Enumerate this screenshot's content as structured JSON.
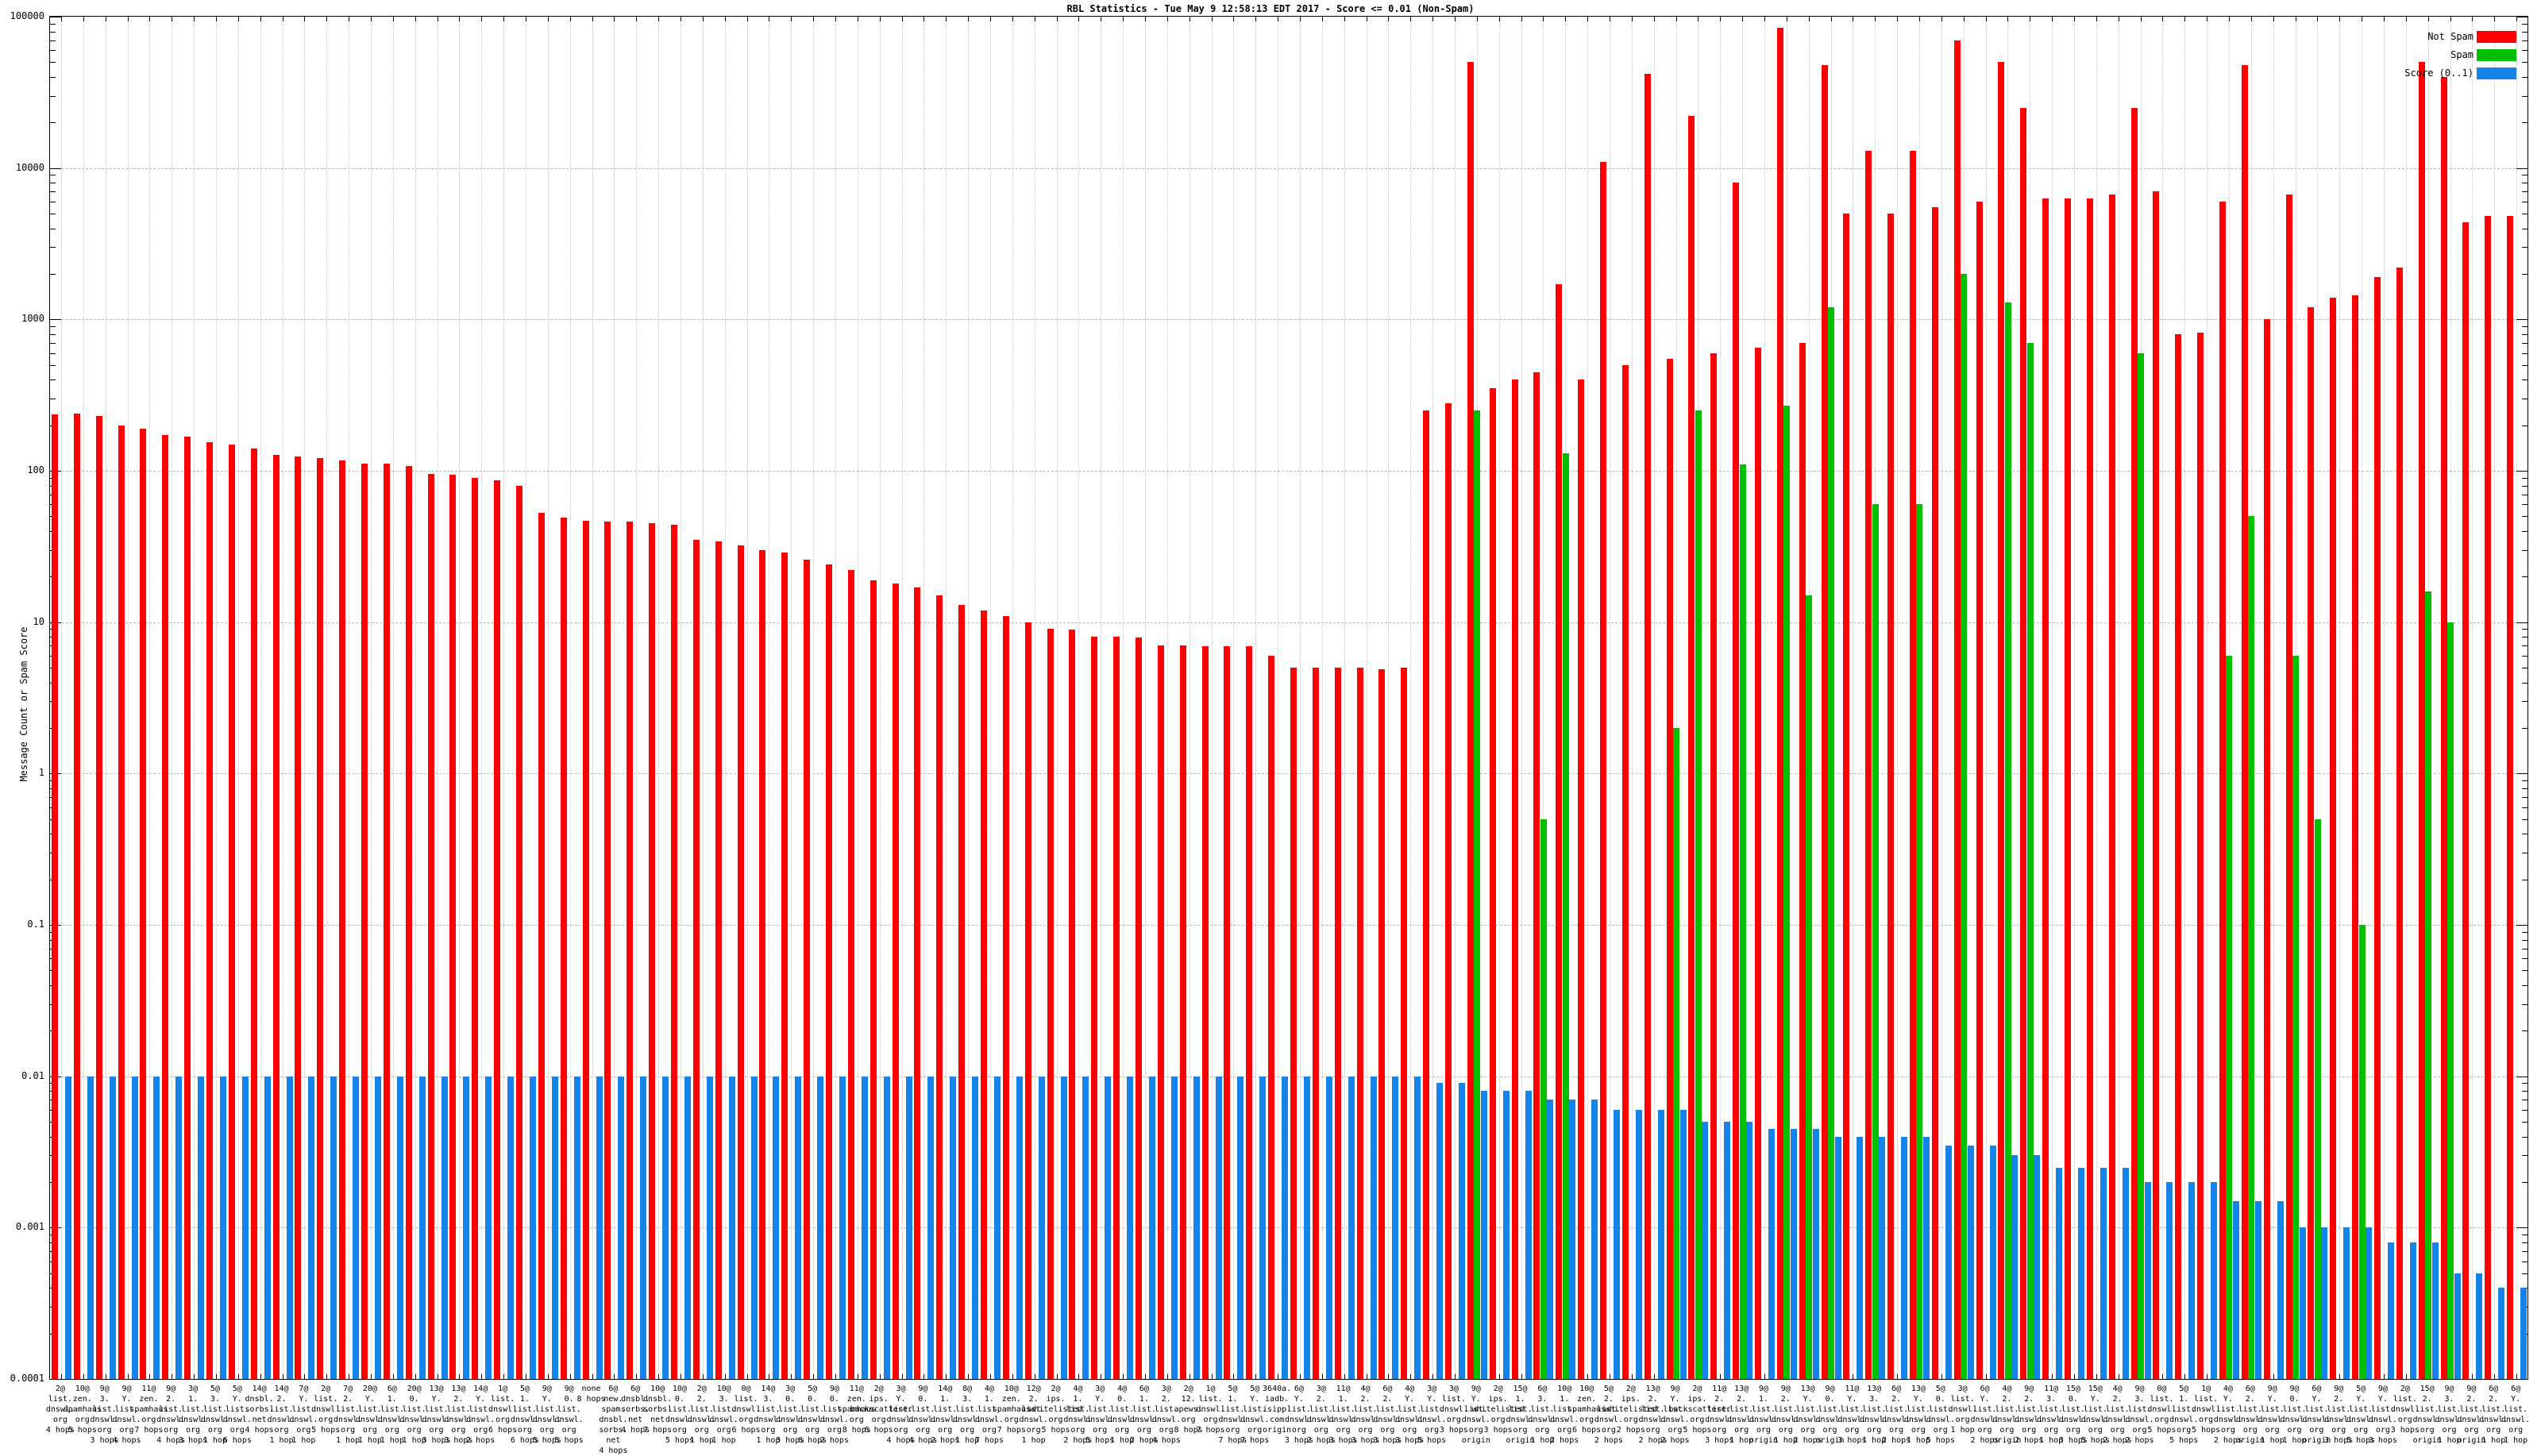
{
  "chart_data": {
    "type": "bar",
    "title": "RBL Statistics - Tue May  9 12:58:13 EDT 2017 - Score <= 0.01 (Non-Spam)",
    "ylabel": "Message Count or Spam Score",
    "xlabel": "",
    "log_y": true,
    "ylim": [
      0.0001,
      100000
    ],
    "grid": true,
    "legend_position": "top-right",
    "y_ticks": [
      "100000",
      "10000",
      "1000",
      "100",
      "10",
      "1",
      "0.1",
      "0.01",
      "0.001",
      "0.0001"
    ],
    "series": [
      {
        "name": "Not Spam",
        "color": "#ff0000"
      },
      {
        "name": "Spam",
        "color": "#00c000"
      },
      {
        "name": "Score (0..1)",
        "color": "#1583e8"
      }
    ],
    "groups": [
      [
        "2@|list.|dnswl.|org|4 hops",
        235,
        null,
        0.01
      ],
      [
        "10@|zen.|spamhaus|org|5 hops",
        240,
        null,
        0.01
      ],
      [
        "9@|3.|list.|dnswl.|org|3 hops",
        230,
        null,
        0.01
      ],
      [
        "9@|Y.|list.|dnswl.|org|4 hops",
        200,
        null,
        0.01
      ],
      [
        "11@|zen.|spamhaus|org|7 hops",
        190,
        null,
        0.01
      ],
      [
        "9@|2.|list.|dnswl.|org|4 hops",
        172,
        null,
        0.01
      ],
      [
        "3@|1.|list.|dnswl.|org|3 hops",
        168,
        null,
        0.01
      ],
      [
        "5@|3.|list.|dnswl.|org|1 hop",
        155,
        null,
        0.01
      ],
      [
        "5@|Y.|list.|dnswl.|org|6 hops",
        149,
        null,
        0.01
      ],
      [
        "14@|dnsbl.|sorbs.|net|4 hops",
        140,
        null,
        0.01
      ],
      [
        "14@|2.|list.|dnswl.|org|1 hop",
        128,
        null,
        0.01
      ],
      [
        "7@|Y.|list.|dnswl.|org|1 hop",
        124,
        null,
        0.01
      ],
      [
        "2@|list.|dnswl.|org|5 hops",
        121,
        null,
        0.01
      ],
      [
        "7@|2.|list.|dnswl.|org|1 hop",
        117,
        null,
        0.01
      ],
      [
        "20@|Y.|list.|dnswl.|org|1 hop",
        112,
        null,
        0.01
      ],
      [
        "6@|1.|list.|dnswl.|org|1 hop",
        111,
        null,
        0.01
      ],
      [
        "20@|0.|list.|dnswl.|org|1 hop",
        108,
        null,
        0.01
      ],
      [
        "13@|Y.|list.|dnswl.|org|3 hops",
        95,
        null,
        0.01
      ],
      [
        "13@|2.|list.|dnswl.|org|3 hops",
        94,
        null,
        0.01
      ],
      [
        "14@|Y.|list.|dnswl.|org|2 hops",
        90,
        null,
        0.01
      ],
      [
        "1@|list.|dnswl.|org|6 hops",
        87,
        null,
        0.01
      ],
      [
        "5@|1.|list.|dnswl.|org|6 hops",
        80,
        null,
        0.01
      ],
      [
        "9@|Y.|list.|dnswl.|org|5 hops",
        53,
        null,
        0.01
      ],
      [
        "9@|0.|list.|dnswl.|org|5 hops",
        49,
        null,
        0.01
      ],
      [
        "none|8 hops",
        47,
        null,
        0.01
      ],
      [
        "6@|new.|spam.|dnsbl.|sorbs.|net|4 hops",
        46,
        null,
        0.01
      ],
      [
        "6@|dnsbl.|sorbs.|net|4 hops",
        46,
        null,
        0.01
      ],
      [
        "10@|dnsbl.|sorbs.|net|7 hops",
        45,
        null,
        0.01
      ],
      [
        "10@|0.|list.|dnswl.|org|5 hops",
        44,
        null,
        0.01
      ],
      [
        "2@|2.|list.|dnswl.|org|1 hop",
        35,
        null,
        0.01
      ],
      [
        "10@|3.|list.|dnswl.|org|1 hop",
        34,
        null,
        0.01
      ],
      [
        "0@|list.|dnswl.|org|6 hops",
        32,
        null,
        0.01
      ],
      [
        "14@|3.|list.|dnswl.|org|1 hop",
        30,
        null,
        0.01
      ],
      [
        "3@|0.|list.|dnswl.|org|3 hops",
        29,
        null,
        0.01
      ],
      [
        "5@|0.|list.|dnswl.|org|6 hops",
        26,
        null,
        0.01
      ],
      [
        "9@|0.|list.|dnswl.|org|2 hops",
        24,
        null,
        0.01
      ],
      [
        "11@|zen.|spamhaus|org|8 hops",
        22,
        null,
        0.01
      ],
      [
        "2@|ips.|backscatterer|org|6 hops",
        19,
        null,
        0.01
      ],
      [
        "3@|Y.|list.|dnswl.|org|4 hops",
        18,
        null,
        0.01
      ],
      [
        "9@|0.|list.|dnswl.|org|4 hops",
        17,
        null,
        0.01
      ],
      [
        "14@|1.|list.|dnswl.|org|2 hops",
        15,
        null,
        0.01
      ],
      [
        "8@|3.|list.|dnswl.|org|1 hop",
        13,
        null,
        0.01
      ],
      [
        "4@|1.|list.|dnswl.|org|7 hops",
        12,
        null,
        0.01
      ],
      [
        "10@|zen.|spamhaus|org|7 hops",
        11,
        null,
        0.01
      ],
      [
        "12@|2.|list.|dnswl.|org|1 hop",
        10,
        null,
        0.01
      ],
      [
        "2@|ips.|whitelisted|org|5 hops",
        9,
        null,
        0.01
      ],
      [
        "4@|1.|list.|dnswl.|org|2 hops",
        8.9,
        null,
        0.01
      ],
      [
        "3@|Y.|list.|dnswl.|org|5 hops",
        8,
        null,
        0.01
      ],
      [
        "4@|0.|list.|dnswl.|org|1 hop",
        8,
        null,
        0.01
      ],
      [
        "6@|1.|list.|dnswl.|org|2 hops",
        7.9,
        null,
        0.01
      ],
      [
        "3@|2.|list.|dnswl.|org|4 hops",
        7,
        null,
        0.01
      ],
      [
        "2@|12.|apews.|org|8 hops",
        7,
        null,
        0.01
      ],
      [
        "1@|list.|dnswl.|org|7 hops",
        6.9,
        null,
        0.01
      ],
      [
        "5@|1.|list.|dnswl.|org|7 hops",
        6.9,
        null,
        0.01
      ],
      [
        "5@|Y.|list.|dnswl.|org|7 hops",
        6.9,
        null,
        0.01
      ],
      [
        "3640a.|iadb.|isipp.|com|origin",
        6,
        null,
        0.01
      ],
      [
        "6@|Y.|list.|dnswl.|org|3 hops",
        5,
        null,
        0.01
      ],
      [
        "3@|2.|list.|dnswl.|org|2 hops",
        5,
        null,
        0.01
      ],
      [
        "11@|1.|list.|dnswl.|org|3 hops",
        5,
        null,
        0.01
      ],
      [
        "4@|2.|list.|dnswl.|org|3 hops",
        5,
        null,
        0.01
      ],
      [
        "6@|2.|list.|dnswl.|org|3 hops",
        4.9,
        null,
        0.01
      ],
      [
        "4@|Y.|list.|dnswl.|org|3 hops",
        5,
        null,
        0.01
      ],
      [
        "3@|Y.|list.|dnswl.|org|5 hops",
        250,
        null,
        0.009
      ],
      [
        "3@|list.|dnswl.|org|3 hops",
        280,
        null,
        0.009
      ],
      [
        "9@|Y.|list.|dnswl.|org|origin",
        50000,
        250,
        0.008
      ],
      [
        "2@|ips.|whitelisted|org|3 hops",
        350,
        null,
        0.008
      ],
      [
        "15@|1.|list.|dnswl.|org|origin",
        400,
        null,
        0.008
      ],
      [
        "6@|3.|list.|dnswl.|org|1 hop",
        450,
        0.5,
        0.007
      ],
      [
        "10@|1.|list.|dnswl.|org|2 hops",
        1700,
        130,
        0.007
      ],
      [
        "10@|zen.|spamhaus|org|6 hops",
        400,
        null,
        0.007
      ],
      [
        "5@|2.|list.|dnswl.|org|2 hops",
        11000,
        null,
        0.006
      ],
      [
        "2@|ips.|whitelisted|org|2 hops",
        500,
        null,
        0.006
      ],
      [
        "13@|2.|list.|dnswl.|org|2 hops",
        42000,
        null,
        0.006
      ],
      [
        "9@|Y.|list.|dnswl.|org|2 hops",
        550,
        2,
        0.006
      ],
      [
        "2@|ips.|backscatterer|org|5 hops",
        22000,
        250,
        0.005
      ],
      [
        "11@|2.|list.|dnswl.|org|3 hops",
        600,
        null,
        0.005
      ],
      [
        "13@|2.|list.|dnswl.|org|1 hop",
        8000,
        110,
        0.005
      ],
      [
        "9@|1.|list.|dnswl.|org|origin",
        650,
        null,
        0.0045
      ],
      [
        "9@|2.|list.|dnswl.|org|1 hop",
        85000,
        270,
        0.0045
      ],
      [
        "13@|Y.|list.|dnswl.|org|2 hops",
        700,
        15,
        0.0045
      ],
      [
        "9@|0.|list.|dnswl.|org|origin",
        48000,
        1200,
        0.004
      ],
      [
        "11@|Y.|list.|dnswl.|org|3 hops",
        5000,
        null,
        0.004
      ],
      [
        "13@|3.|list.|dnswl.|org|1 hop",
        13000,
        60,
        0.004
      ],
      [
        "6@|2.|list.|dnswl.|org|2 hops",
        5000,
        null,
        0.004
      ],
      [
        "13@|Y.|list.|dnswl.|org|1 hop",
        13000,
        60,
        0.004
      ],
      [
        "5@|0.|list.|dnswl.|org|5 hops",
        5500,
        null,
        0.0035
      ],
      [
        "3@|list.|dnswl.|org|1 hop",
        70000,
        2000,
        0.0035
      ],
      [
        "6@|Y.|list.|dnswl.|org|2 hops",
        6000,
        null,
        0.0035
      ],
      [
        "4@|2.|list.|dnswl.|org|origin",
        50000,
        1300,
        0.003
      ],
      [
        "9@|2.|list.|dnswl.|org|2 hops",
        25000,
        700,
        0.003
      ],
      [
        "11@|3.|list.|dnswl.|org|1 hop",
        6300,
        null,
        0.0025
      ],
      [
        "15@|0.|list.|dnswl.|org|3 hops",
        6300,
        null,
        0.0025
      ],
      [
        "15@|Y.|list.|dnswl.|org|5 hops",
        6300,
        null,
        0.0025
      ],
      [
        "4@|2.|list.|dnswl.|org|2 hops",
        6700,
        null,
        0.0025
      ],
      [
        "9@|3.|list.|dnswl.|org|2 hops",
        25000,
        600,
        0.002
      ],
      [
        "0@|list.|dnswl.|org|5 hops",
        7000,
        null,
        0.002
      ],
      [
        "5@|1.|list.|dnswl.|org|5 hops",
        800,
        null,
        0.002
      ],
      [
        "1@|list.|dnswl.|org|5 hops",
        820,
        null,
        0.002
      ],
      [
        "4@|Y.|list.|dnswl.|org|2 hops",
        6000,
        6,
        0.0015
      ],
      [
        "6@|2.|list.|dnswl.|org|origin",
        48000,
        50,
        0.0015
      ],
      [
        "9@|Y.|list.|dnswl.|org|1 hop",
        1000,
        null,
        0.0015
      ],
      [
        "9@|0.|list.|dnswl.|org|1 hop",
        6700,
        6,
        0.001
      ],
      [
        "6@|Y.|list.|dnswl.|org|origin",
        1200,
        0.5,
        0.001
      ],
      [
        "9@|2.|list.|dnswl.|org|3 hops",
        1400,
        null,
        0.001
      ],
      [
        "5@|Y.|list.|dnswl.|org|5 hops",
        1450,
        0.1,
        0.001
      ],
      [
        "9@|Y.|list.|dnswl.|org|3 hops",
        1900,
        null,
        0.0008
      ],
      [
        "2@|list.|dnswl.|org|3 hops",
        2200,
        null,
        0.0008
      ],
      [
        "15@|2.|list.|dnswl.|org|origin",
        50000,
        16,
        0.0008
      ],
      [
        "9@|3.|list.|dnswl.|org|1 hop",
        40000,
        10,
        0.0005
      ],
      [
        "9@|2.|list.|dnswl.|org|origin",
        4400,
        null,
        0.0005
      ],
      [
        "6@|2.|list.|dnswl.|org|1 hop",
        4800,
        null,
        0.0004
      ],
      [
        "6@|Y.|list.|dnswl.|org|1 hop",
        4800,
        null,
        0.0004
      ]
    ]
  }
}
